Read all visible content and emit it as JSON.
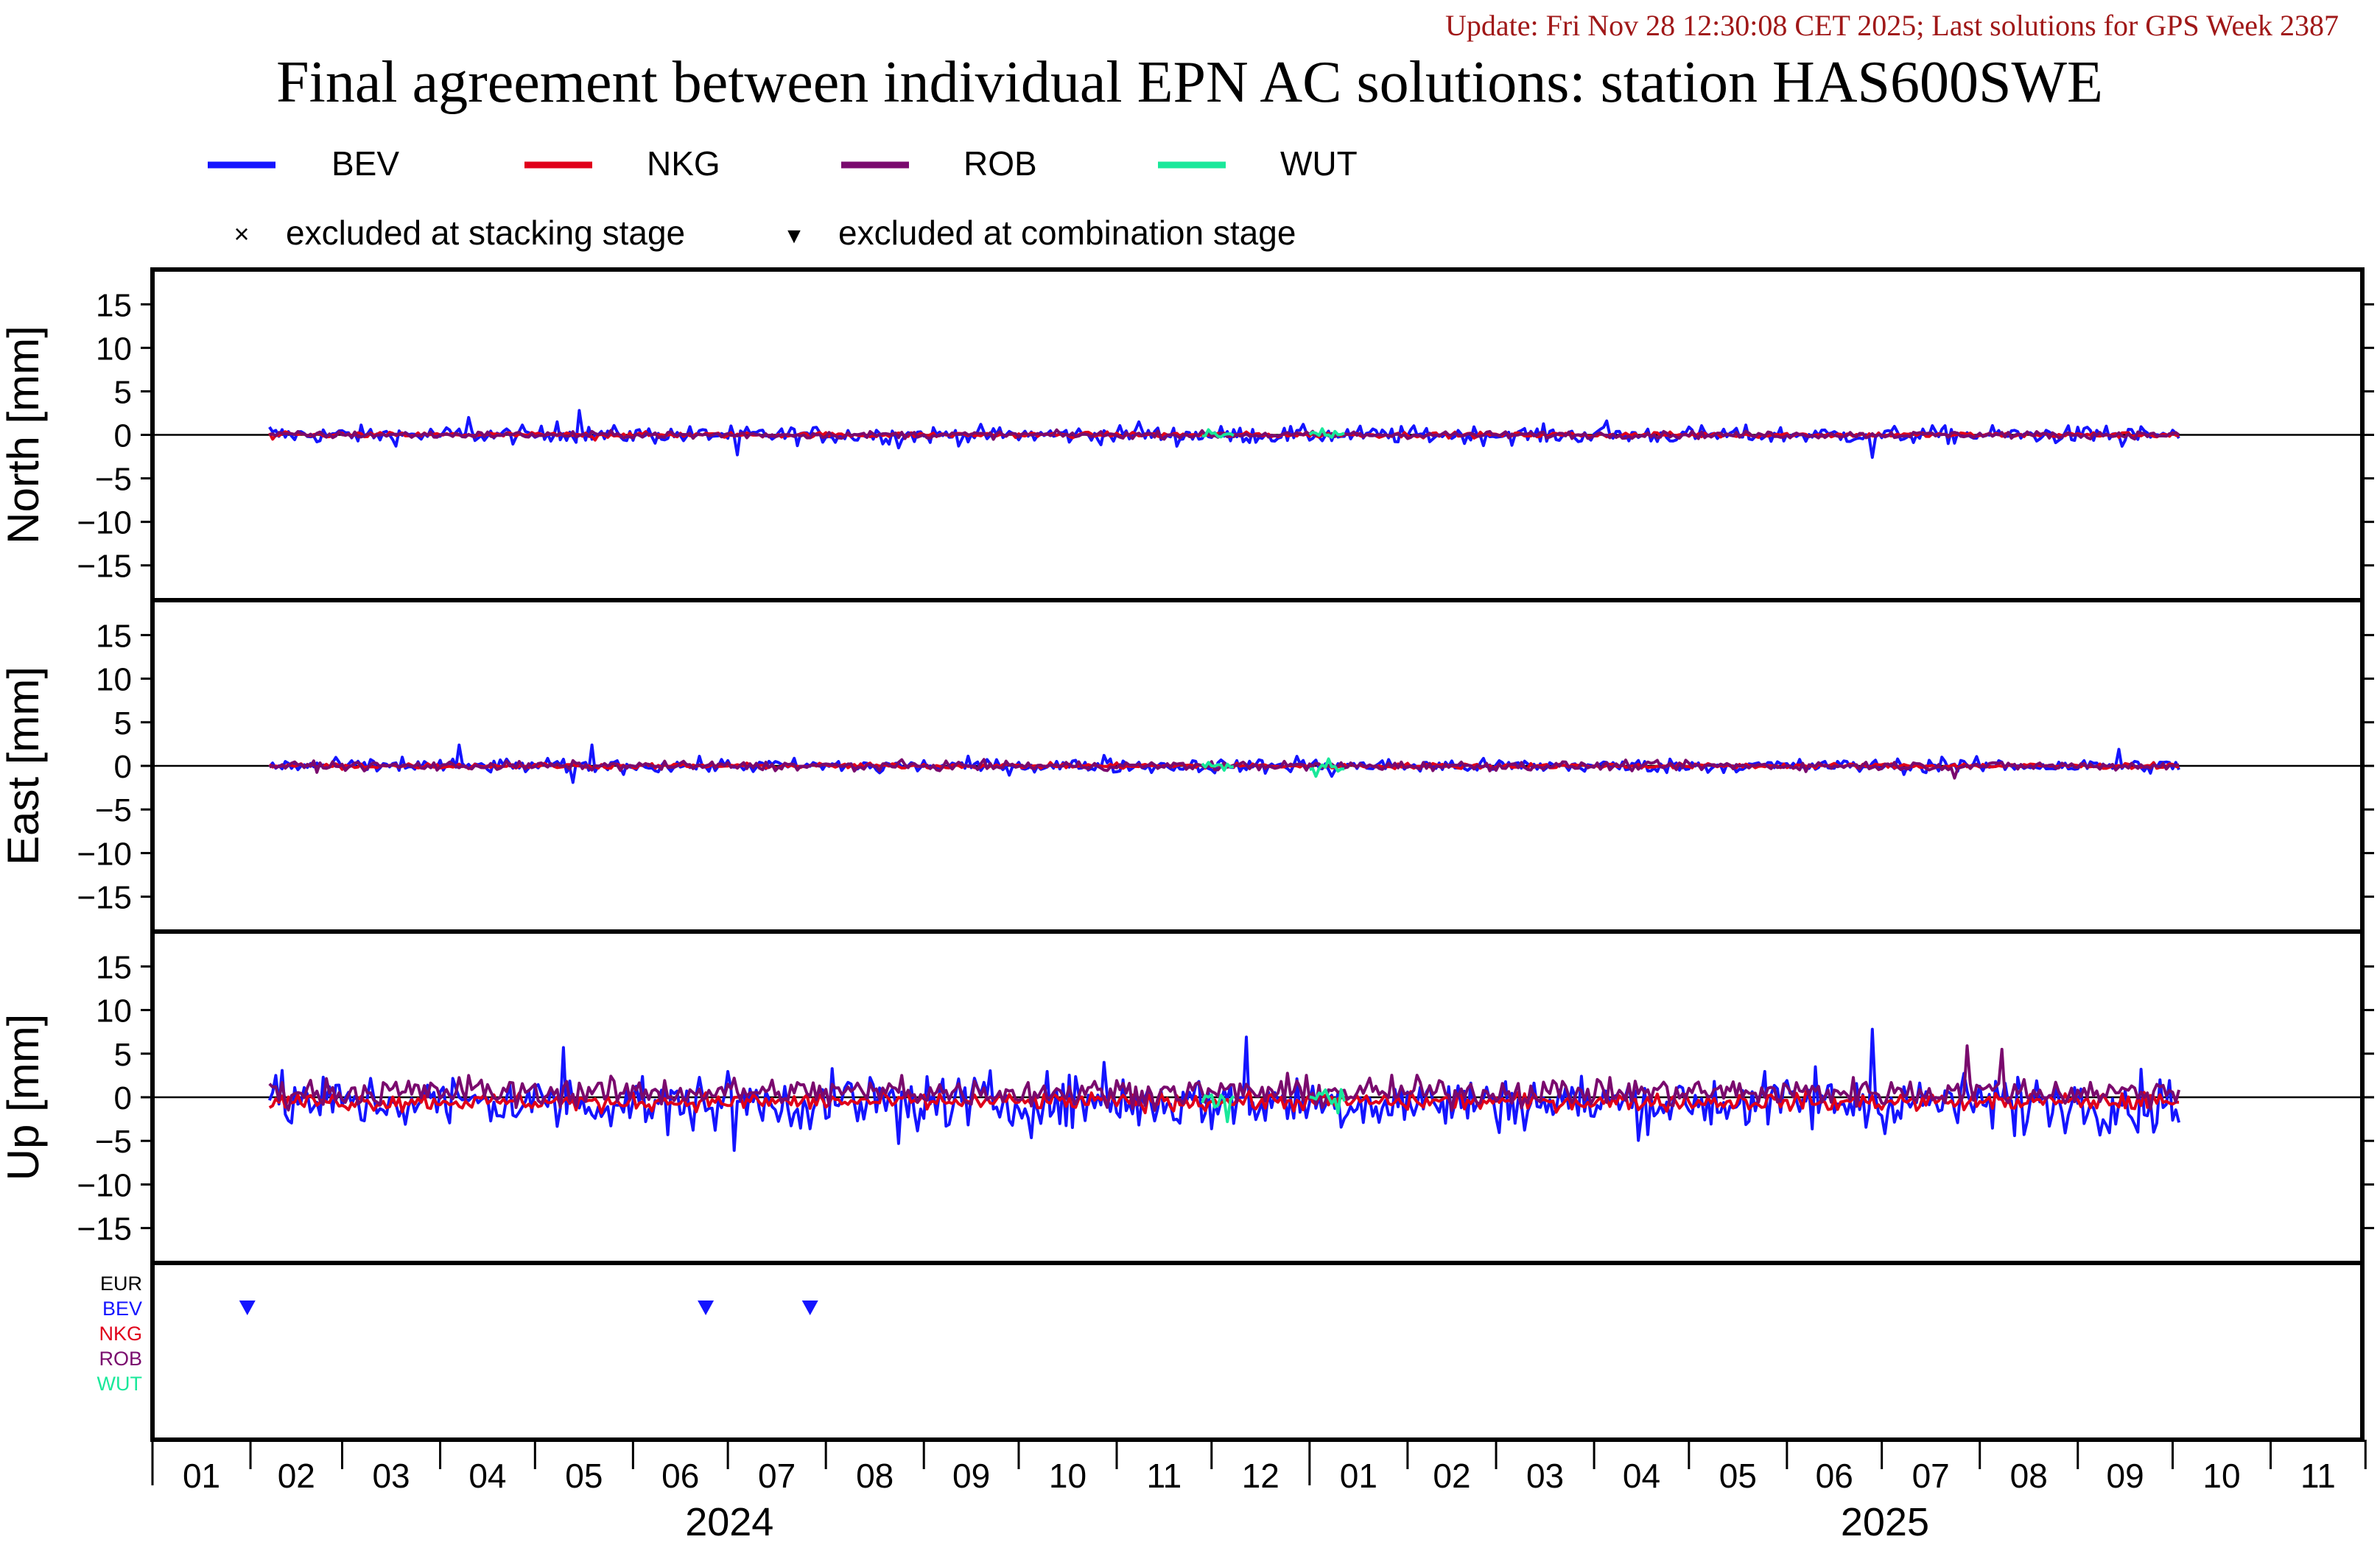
{
  "update_text": "Update: Fri Nov 28 12:30:08 CET 2025; Last solutions for GPS Week 2387",
  "title": "Final agreement between individual EPN AC solutions: station HAS600SWE",
  "colors": {
    "BEV": "#1414ff",
    "NKG": "#e0001a",
    "ROB": "#7a0a6e",
    "WUT": "#19e89a",
    "EUR": "#000000",
    "update": "#a01818",
    "frame": "#000000"
  },
  "legend": {
    "series": [
      "BEV",
      "NKG",
      "ROB",
      "WUT"
    ],
    "markers": [
      {
        "symbol": "×",
        "label": "excluded at stacking stage"
      },
      {
        "symbol": "▼",
        "label": "excluded at combination stage"
      }
    ]
  },
  "chart_data": {
    "type": "line",
    "x_range": [
      "2024-01-01",
      "2025-11-30"
    ],
    "month_ticks": [
      "01",
      "02",
      "03",
      "04",
      "05",
      "06",
      "07",
      "08",
      "09",
      "10",
      "11",
      "12",
      "01",
      "02",
      "03",
      "04",
      "05",
      "06",
      "07",
      "08",
      "09",
      "10",
      "11"
    ],
    "year_labels": [
      "2024",
      "2025"
    ],
    "y_ticks": [
      "15",
      "10",
      "5",
      "0",
      "−5",
      "−10",
      "−15"
    ],
    "ylim": [
      -19,
      19
    ],
    "data_start": "2024-02-07",
    "data_end": "2025-10-03",
    "panels": [
      {
        "name": "North",
        "ylabel": "North [mm]",
        "series": [
          {
            "name": "BEV",
            "noise": 0.5,
            "spikes": [
              [
                "2024-02-07",
                0.9
              ],
              [
                "2024-04-10",
                2.0
              ],
              [
                "2024-05-15",
                2.8
              ],
              [
                "2024-05-08",
                1.5
              ],
              [
                "2024-07-04",
                -2.3
              ],
              [
                "2024-08-24",
                -1.5
              ],
              [
                "2024-11-08",
                1.5
              ],
              [
                "2024-11-20",
                -1.3
              ],
              [
                "2025-04-05",
                1.6
              ],
              [
                "2025-06-28",
                -2.6
              ],
              [
                "2025-09-15",
                -1.3
              ],
              [
                "2025-09-10",
                1.0
              ]
            ]
          },
          {
            "name": "NKG",
            "noise": 0.15,
            "spikes": [
              [
                "2024-02-08",
                -0.5
              ],
              [
                "2024-05-20",
                -0.6
              ]
            ]
          },
          {
            "name": "ROB",
            "noise": 0.2,
            "spikes": [
              [
                "2024-06-20",
                -0.4
              ]
            ]
          },
          {
            "name": "WUT",
            "noise": 0.3,
            "windows": [
              [
                "2024-11-28",
                "2024-12-08"
              ],
              [
                "2025-01-01",
                "2025-01-12"
              ]
            ],
            "spikes": [
              [
                "2025-01-05",
                0.7
              ]
            ]
          }
        ]
      },
      {
        "name": "East",
        "ylabel": "East [mm]",
        "series": [
          {
            "name": "BEV",
            "noise": 0.4,
            "spikes": [
              [
                "2024-04-07",
                2.4
              ],
              [
                "2024-05-13",
                -1.9
              ],
              [
                "2024-05-19",
                2.4
              ],
              [
                "2024-03-20",
                1.0
              ],
              [
                "2024-08-18",
                -0.8
              ],
              [
                "2024-10-28",
                1.2
              ],
              [
                "2024-12-28",
                1.1
              ],
              [
                "2025-01-08",
                -1.2
              ],
              [
                "2025-09-14",
                1.9
              ],
              [
                "2025-07-20",
                1.0
              ]
            ]
          },
          {
            "name": "NKG",
            "noise": 0.15,
            "spikes": [
              [
                "2024-03-01",
                -0.4
              ]
            ]
          },
          {
            "name": "ROB",
            "noise": 0.25,
            "spikes": [
              [
                "2025-07-24",
                -1.4
              ],
              [
                "2024-08-10",
                -0.6
              ]
            ]
          },
          {
            "name": "WUT",
            "noise": 0.4,
            "windows": [
              [
                "2024-11-28",
                "2024-12-08"
              ],
              [
                "2025-01-01",
                "2025-01-12"
              ]
            ],
            "spikes": [
              [
                "2025-01-03",
                -1.2
              ],
              [
                "2025-01-07",
                0.8
              ]
            ]
          }
        ]
      },
      {
        "name": "Up",
        "ylabel": "Up [mm]",
        "series": [
          {
            "name": "BEV",
            "noise": 1.6,
            "bias": -0.6,
            "spikes": [
              [
                "2024-05-10",
                5.7
              ],
              [
                "2024-07-03",
                -6.1
              ],
              [
                "2024-08-24",
                -5.3
              ],
              [
                "2024-06-12",
                -4.3
              ],
              [
                "2024-10-28",
                4.0
              ],
              [
                "2024-12-12",
                6.9
              ],
              [
                "2024-12-08",
                -3.0
              ],
              [
                "2025-06-28",
                7.8
              ],
              [
                "2025-06-10",
                3.5
              ],
              [
                "2025-08-12",
                -4.4
              ],
              [
                "2025-09-20",
                -4.0
              ],
              [
                "2025-10-03",
                -2.9
              ]
            ]
          },
          {
            "name": "NKG",
            "noise": 0.5,
            "bias": -0.5,
            "spikes": [
              [
                "2024-05-22",
                -1.8
              ],
              [
                "2025-06-14",
                -1.4
              ]
            ]
          },
          {
            "name": "ROB",
            "noise": 0.8,
            "bias": 0.6,
            "spikes": [
              [
                "2024-04-10",
                2.5
              ],
              [
                "2025-07-28",
                5.9
              ],
              [
                "2025-08-08",
                5.5
              ],
              [
                "2024-08-25",
                2.5
              ]
            ]
          },
          {
            "name": "WUT",
            "noise": 0.6,
            "windows": [
              [
                "2024-11-28",
                "2024-12-08"
              ],
              [
                "2025-01-01",
                "2025-01-12"
              ]
            ],
            "spikes": [
              [
                "2024-12-06",
                -2.8
              ],
              [
                "2025-01-10",
                -1.8
              ]
            ]
          }
        ]
      }
    ],
    "exclusion_panel": {
      "rows": [
        "EUR",
        "BEV",
        "NKG",
        "ROB",
        "WUT"
      ],
      "combination_excluded": [
        {
          "ac": "BEV",
          "date": "2024-01-31"
        },
        {
          "ac": "BEV",
          "date": "2024-06-24"
        },
        {
          "ac": "BEV",
          "date": "2024-07-27"
        }
      ],
      "stacking_excluded": []
    }
  }
}
